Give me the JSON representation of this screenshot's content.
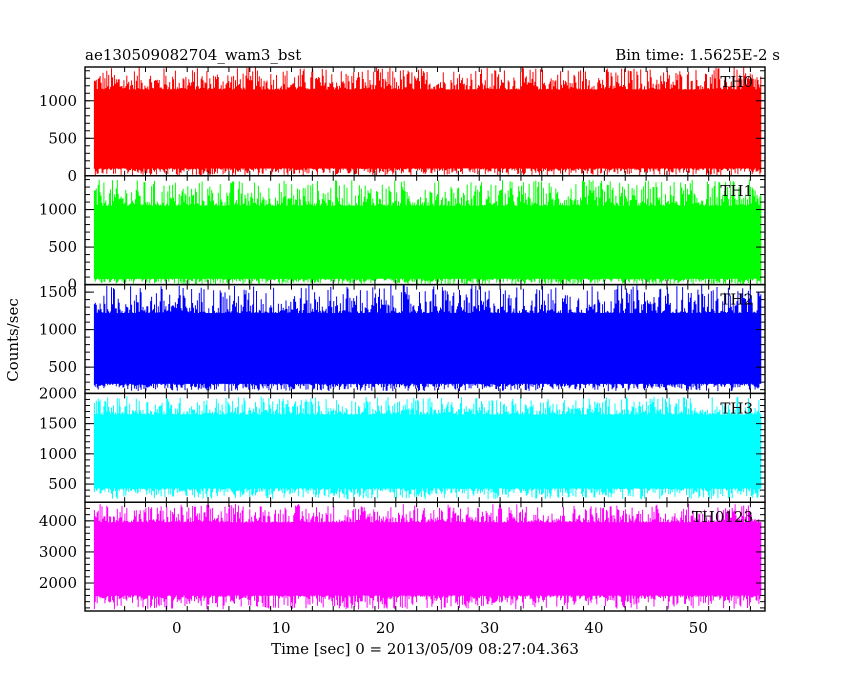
{
  "chart_data": {
    "type": "line",
    "title_left": "ae130509082704_wam3_bst",
    "title_right": "Bin time: 1.5625E-2 s",
    "xlabel": "Time [sec] 0 = 2013/05/09 08:27:04.363",
    "ylabel": "Counts/sec",
    "xlim": [
      -8.8,
      56.4
    ],
    "x_range": [
      -7.9,
      56.0
    ],
    "x_ticks": [
      0,
      10,
      20,
      30,
      40,
      50
    ],
    "panels": [
      {
        "name": "TH0",
        "color": "#ff0000",
        "ylim": [
          0,
          1450
        ],
        "yticks": [
          0,
          500,
          1000
        ],
        "baseline": 630,
        "band_low": 100,
        "band_high": 1150,
        "min": 0,
        "max": 1450
      },
      {
        "name": "TH1",
        "color": "#00ff00",
        "ylim": [
          0,
          1450
        ],
        "yticks": [
          0,
          500,
          1000
        ],
        "baseline": 560,
        "band_low": 80,
        "band_high": 1050,
        "min": 0,
        "max": 1400
      },
      {
        "name": "TH2",
        "color": "#0000ff",
        "ylim": [
          150,
          1600
        ],
        "yticks": [
          500,
          1000,
          1500
        ],
        "baseline": 730,
        "band_low": 280,
        "band_high": 1220,
        "min": 180,
        "max": 1600
      },
      {
        "name": "TH3",
        "color": "#00ffff",
        "ylim": [
          200,
          2000
        ],
        "yticks": [
          500,
          1000,
          1500,
          2000
        ],
        "baseline": 1030,
        "band_low": 430,
        "band_high": 1650,
        "min": 250,
        "max": 1950
      },
      {
        "name": "TH0123",
        "color": "#ff00ff",
        "ylim": [
          1100,
          4600
        ],
        "yticks": [
          2000,
          3000,
          4000
        ],
        "baseline": 2750,
        "band_low": 1600,
        "band_high": 3950,
        "min": 1150,
        "max": 4550
      }
    ],
    "grid": false,
    "legend": "none"
  }
}
